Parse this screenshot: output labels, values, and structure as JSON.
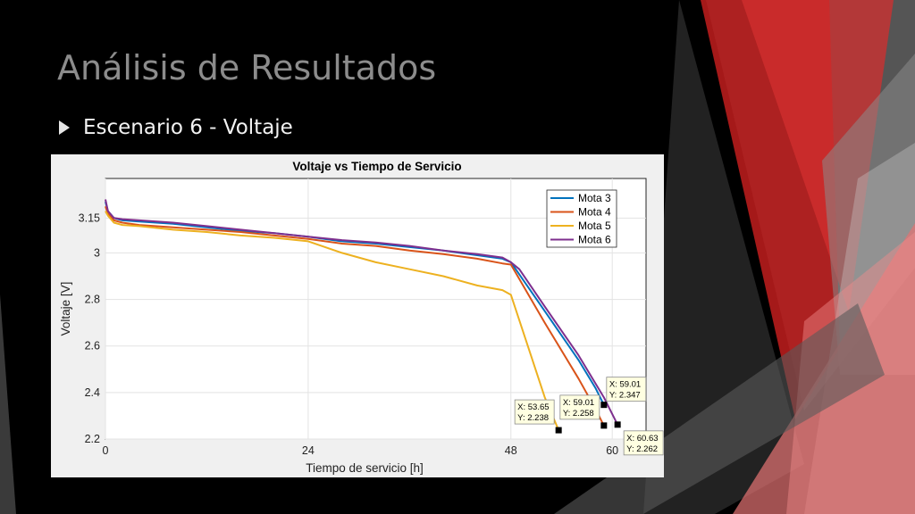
{
  "slide": {
    "title": "Análisis de Resultados",
    "bullet": "Escenario 6 - Voltaje",
    "colors": {
      "background": "#000000",
      "accent_red": "#d32f2f",
      "accent_gray": "#8c8c8c"
    }
  },
  "chart_data": {
    "type": "line",
    "title": "Voltaje vs Tiempo de Servicio",
    "xlabel": "Tiempo de servicio [h]",
    "ylabel": "Voltaje [V]",
    "xlim": [
      0,
      64
    ],
    "ylim": [
      2.2,
      3.32
    ],
    "xticks": [
      0,
      24,
      48,
      60
    ],
    "yticks": [
      2.2,
      2.4,
      2.6,
      2.8,
      3,
      3.15
    ],
    "ytick_labels": [
      "2.2",
      "2.4",
      "2.6",
      "2.8",
      "3",
      "3.15"
    ],
    "grid": true,
    "legend_position": "top-right",
    "series": [
      {
        "name": "Mota 3",
        "color": "#0072BD",
        "x": [
          0,
          0.3,
          1,
          2,
          4,
          8,
          12,
          16,
          20,
          24,
          28,
          32,
          36,
          40,
          44,
          47,
          48,
          52,
          56,
          58,
          59.01
        ],
        "y": [
          3.22,
          3.18,
          3.15,
          3.14,
          3.135,
          3.125,
          3.11,
          3.095,
          3.085,
          3.07,
          3.05,
          3.04,
          3.025,
          3.01,
          2.99,
          2.975,
          2.96,
          2.75,
          2.54,
          2.42,
          2.347
        ]
      },
      {
        "name": "Mota 4",
        "color": "#D95319",
        "x": [
          0,
          0.3,
          1,
          2,
          4,
          8,
          12,
          16,
          20,
          24,
          28,
          32,
          36,
          40,
          44,
          47,
          48,
          52,
          56,
          58,
          59.01
        ],
        "y": [
          3.2,
          3.17,
          3.14,
          3.13,
          3.12,
          3.11,
          3.1,
          3.09,
          3.075,
          3.06,
          3.04,
          3.03,
          3.01,
          2.995,
          2.975,
          2.955,
          2.95,
          2.7,
          2.46,
          2.33,
          2.258
        ]
      },
      {
        "name": "Mota 5",
        "color": "#EDB120",
        "x": [
          0,
          0.3,
          1,
          2,
          4,
          8,
          12,
          16,
          20,
          24,
          28,
          32,
          36,
          40,
          44,
          47,
          48,
          50,
          52,
          53.65
        ],
        "y": [
          3.18,
          3.16,
          3.13,
          3.12,
          3.115,
          3.1,
          3.09,
          3.075,
          3.065,
          3.05,
          3.0,
          2.96,
          2.93,
          2.9,
          2.86,
          2.84,
          2.82,
          2.6,
          2.38,
          2.238
        ]
      },
      {
        "name": "Mota 6",
        "color": "#7E2F8E",
        "x": [
          0,
          0.3,
          1,
          2,
          4,
          8,
          12,
          16,
          20,
          24,
          28,
          32,
          36,
          40,
          44,
          47,
          48,
          49,
          52,
          56,
          59,
          60.63
        ],
        "y": [
          3.23,
          3.18,
          3.15,
          3.145,
          3.14,
          3.13,
          3.115,
          3.1,
          3.085,
          3.07,
          3.055,
          3.045,
          3.03,
          3.01,
          2.995,
          2.98,
          2.96,
          2.93,
          2.77,
          2.56,
          2.38,
          2.262
        ]
      }
    ],
    "datatips": [
      {
        "x": 53.65,
        "y": 2.238,
        "label_x": "X: 53.65",
        "label_y": "Y: 2.238"
      },
      {
        "x": 59.01,
        "y": 2.258,
        "label_x": "X: 59.01",
        "label_y": "Y: 2.258"
      },
      {
        "x": 59.01,
        "y": 2.347,
        "label_x": "X: 59.01",
        "label_y": "Y: 2.347"
      },
      {
        "x": 60.63,
        "y": 2.262,
        "label_x": "X: 60.63",
        "label_y": "Y: 2.262"
      }
    ]
  }
}
